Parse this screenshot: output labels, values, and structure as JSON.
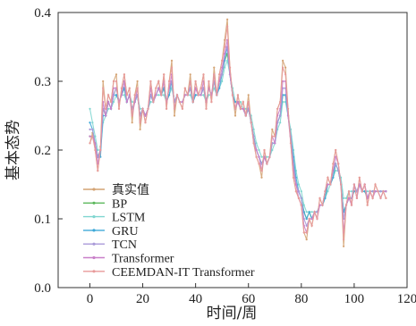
{
  "chart_data": {
    "type": "line",
    "xlabel": "时间/周",
    "ylabel": "基本态势",
    "xlim": [
      -12,
      120
    ],
    "ylim": [
      0.0,
      0.4
    ],
    "x_ticks": [
      0,
      20,
      40,
      60,
      80,
      100,
      120
    ],
    "y_ticks": [
      0.0,
      0.1,
      0.2,
      0.3,
      0.4
    ],
    "x_tick_labels": [
      "0",
      "20",
      "40",
      "60",
      "80",
      "100",
      "120"
    ],
    "y_tick_labels": [
      "0.0",
      "0.1",
      "0.2",
      "0.3",
      "0.4"
    ],
    "legend_position": "lower-left",
    "grid": false,
    "x": [
      0,
      1,
      2,
      3,
      4,
      5,
      6,
      7,
      8,
      9,
      10,
      11,
      12,
      13,
      14,
      15,
      16,
      17,
      18,
      19,
      20,
      21,
      22,
      23,
      24,
      25,
      26,
      27,
      28,
      29,
      30,
      31,
      32,
      33,
      34,
      35,
      36,
      37,
      38,
      39,
      40,
      41,
      42,
      43,
      44,
      45,
      46,
      47,
      48,
      49,
      50,
      51,
      52,
      53,
      54,
      55,
      56,
      57,
      58,
      59,
      60,
      61,
      62,
      63,
      64,
      65,
      66,
      67,
      68,
      69,
      70,
      71,
      72,
      73,
      74,
      75,
      76,
      77,
      78,
      79,
      80,
      81,
      82,
      83,
      84,
      85,
      86,
      87,
      88,
      89,
      90,
      91,
      92,
      93,
      94,
      95,
      96,
      97,
      98,
      99,
      100,
      101,
      102,
      103,
      104,
      105,
      106,
      107,
      108,
      109,
      110,
      111,
      112
    ],
    "series": [
      {
        "name": "真实值",
        "color": "#d4a373",
        "values": [
          0.21,
          0.225,
          0.2,
          0.17,
          0.205,
          0.3,
          0.26,
          0.28,
          0.27,
          0.3,
          0.31,
          0.26,
          0.29,
          0.31,
          0.28,
          0.29,
          0.24,
          0.28,
          0.3,
          0.23,
          0.26,
          0.24,
          0.26,
          0.3,
          0.27,
          0.29,
          0.3,
          0.28,
          0.31,
          0.26,
          0.3,
          0.33,
          0.25,
          0.28,
          0.27,
          0.26,
          0.29,
          0.28,
          0.31,
          0.27,
          0.3,
          0.28,
          0.29,
          0.31,
          0.26,
          0.3,
          0.27,
          0.32,
          0.28,
          0.31,
          0.33,
          0.36,
          0.39,
          0.32,
          0.28,
          0.25,
          0.28,
          0.26,
          0.27,
          0.25,
          0.28,
          0.24,
          0.21,
          0.19,
          0.18,
          0.16,
          0.2,
          0.18,
          0.19,
          0.23,
          0.22,
          0.26,
          0.27,
          0.33,
          0.32,
          0.26,
          0.21,
          0.16,
          0.14,
          0.13,
          0.12,
          0.08,
          0.07,
          0.1,
          0.09,
          0.11,
          0.1,
          0.13,
          0.12,
          0.14,
          0.16,
          0.15,
          0.18,
          0.2,
          0.18,
          0.15,
          0.06,
          0.12,
          0.14,
          0.12,
          0.15,
          0.13,
          0.16,
          0.14,
          0.15,
          0.12,
          0.14,
          0.13,
          0.15,
          0.14,
          0.13,
          0.14,
          0.13
        ]
      },
      {
        "name": "BP",
        "color": "#5cb85c",
        "values": [
          0.22,
          0.22,
          0.21,
          0.19,
          0.2,
          0.26,
          0.25,
          0.27,
          0.26,
          0.28,
          0.29,
          0.27,
          0.28,
          0.29,
          0.27,
          0.28,
          0.26,
          0.27,
          0.28,
          0.25,
          0.26,
          0.25,
          0.26,
          0.28,
          0.27,
          0.28,
          0.29,
          0.28,
          0.29,
          0.27,
          0.29,
          0.3,
          0.27,
          0.28,
          0.27,
          0.27,
          0.28,
          0.28,
          0.29,
          0.27,
          0.28,
          0.28,
          0.28,
          0.29,
          0.27,
          0.29,
          0.28,
          0.3,
          0.28,
          0.3,
          0.31,
          0.33,
          0.34,
          0.31,
          0.28,
          0.27,
          0.27,
          0.26,
          0.26,
          0.25,
          0.26,
          0.24,
          0.22,
          0.2,
          0.19,
          0.18,
          0.19,
          0.18,
          0.19,
          0.21,
          0.21,
          0.24,
          0.25,
          0.28,
          0.28,
          0.25,
          0.22,
          0.18,
          0.15,
          0.14,
          0.13,
          0.11,
          0.1,
          0.11,
          0.1,
          0.11,
          0.11,
          0.12,
          0.12,
          0.13,
          0.15,
          0.15,
          0.16,
          0.18,
          0.17,
          0.15,
          0.11,
          0.12,
          0.13,
          0.13,
          0.14,
          0.14,
          0.15,
          0.14,
          0.14,
          0.13,
          0.14,
          0.14,
          0.14,
          0.14,
          0.14,
          0.14,
          0.14
        ]
      },
      {
        "name": "LSTM",
        "color": "#7fd6d0",
        "values": [
          0.26,
          0.24,
          0.22,
          0.2,
          0.2,
          0.24,
          0.25,
          0.26,
          0.26,
          0.27,
          0.28,
          0.27,
          0.28,
          0.28,
          0.27,
          0.28,
          0.27,
          0.27,
          0.28,
          0.26,
          0.26,
          0.25,
          0.26,
          0.27,
          0.27,
          0.28,
          0.28,
          0.28,
          0.28,
          0.27,
          0.28,
          0.29,
          0.27,
          0.28,
          0.27,
          0.27,
          0.28,
          0.28,
          0.28,
          0.27,
          0.28,
          0.28,
          0.28,
          0.28,
          0.27,
          0.28,
          0.28,
          0.29,
          0.28,
          0.29,
          0.3,
          0.32,
          0.33,
          0.31,
          0.29,
          0.27,
          0.27,
          0.27,
          0.26,
          0.26,
          0.26,
          0.25,
          0.23,
          0.21,
          0.2,
          0.19,
          0.19,
          0.19,
          0.19,
          0.2,
          0.21,
          0.23,
          0.24,
          0.27,
          0.27,
          0.25,
          0.23,
          0.2,
          0.17,
          0.15,
          0.14,
          0.12,
          0.11,
          0.11,
          0.11,
          0.11,
          0.11,
          0.12,
          0.12,
          0.13,
          0.14,
          0.15,
          0.16,
          0.17,
          0.17,
          0.16,
          0.13,
          0.13,
          0.14,
          0.14,
          0.14,
          0.14,
          0.15,
          0.14,
          0.14,
          0.14,
          0.14,
          0.14,
          0.14,
          0.14,
          0.14,
          0.14,
          0.14
        ]
      },
      {
        "name": "GRU",
        "color": "#3fa9d8",
        "values": [
          0.24,
          0.23,
          0.21,
          0.19,
          0.19,
          0.25,
          0.25,
          0.27,
          0.26,
          0.28,
          0.28,
          0.27,
          0.28,
          0.29,
          0.27,
          0.28,
          0.26,
          0.27,
          0.28,
          0.25,
          0.26,
          0.25,
          0.26,
          0.28,
          0.27,
          0.28,
          0.29,
          0.28,
          0.29,
          0.27,
          0.28,
          0.3,
          0.27,
          0.28,
          0.27,
          0.27,
          0.28,
          0.28,
          0.29,
          0.27,
          0.28,
          0.28,
          0.28,
          0.29,
          0.27,
          0.29,
          0.28,
          0.3,
          0.28,
          0.29,
          0.31,
          0.33,
          0.35,
          0.31,
          0.28,
          0.27,
          0.27,
          0.26,
          0.26,
          0.25,
          0.26,
          0.24,
          0.22,
          0.2,
          0.19,
          0.18,
          0.19,
          0.18,
          0.19,
          0.21,
          0.21,
          0.24,
          0.25,
          0.28,
          0.28,
          0.25,
          0.22,
          0.19,
          0.16,
          0.14,
          0.13,
          0.11,
          0.1,
          0.11,
          0.1,
          0.11,
          0.11,
          0.12,
          0.12,
          0.13,
          0.15,
          0.15,
          0.16,
          0.18,
          0.17,
          0.15,
          0.11,
          0.12,
          0.13,
          0.13,
          0.14,
          0.14,
          0.15,
          0.14,
          0.14,
          0.13,
          0.14,
          0.14,
          0.14,
          0.14,
          0.14,
          0.14,
          0.14
        ]
      },
      {
        "name": "TCN",
        "color": "#a99ad8",
        "values": [
          0.23,
          0.23,
          0.21,
          0.19,
          0.2,
          0.26,
          0.25,
          0.27,
          0.26,
          0.28,
          0.29,
          0.27,
          0.28,
          0.3,
          0.27,
          0.28,
          0.26,
          0.27,
          0.28,
          0.25,
          0.26,
          0.25,
          0.26,
          0.28,
          0.27,
          0.28,
          0.29,
          0.28,
          0.3,
          0.27,
          0.29,
          0.3,
          0.27,
          0.28,
          0.27,
          0.27,
          0.28,
          0.28,
          0.29,
          0.27,
          0.29,
          0.28,
          0.28,
          0.29,
          0.27,
          0.29,
          0.28,
          0.3,
          0.28,
          0.3,
          0.31,
          0.34,
          0.35,
          0.31,
          0.28,
          0.26,
          0.27,
          0.26,
          0.26,
          0.25,
          0.26,
          0.24,
          0.22,
          0.2,
          0.19,
          0.18,
          0.19,
          0.18,
          0.19,
          0.21,
          0.21,
          0.24,
          0.25,
          0.29,
          0.29,
          0.25,
          0.22,
          0.18,
          0.15,
          0.14,
          0.13,
          0.1,
          0.09,
          0.1,
          0.1,
          0.11,
          0.11,
          0.12,
          0.12,
          0.14,
          0.15,
          0.15,
          0.17,
          0.18,
          0.17,
          0.15,
          0.1,
          0.12,
          0.13,
          0.13,
          0.15,
          0.14,
          0.15,
          0.14,
          0.15,
          0.13,
          0.14,
          0.14,
          0.14,
          0.14,
          0.14,
          0.14,
          0.14
        ]
      },
      {
        "name": "Transformer",
        "color": "#c97fc9",
        "values": [
          0.22,
          0.22,
          0.21,
          0.18,
          0.2,
          0.27,
          0.25,
          0.27,
          0.26,
          0.29,
          0.29,
          0.27,
          0.28,
          0.3,
          0.27,
          0.28,
          0.25,
          0.27,
          0.29,
          0.24,
          0.26,
          0.25,
          0.26,
          0.29,
          0.27,
          0.28,
          0.29,
          0.28,
          0.3,
          0.27,
          0.29,
          0.31,
          0.26,
          0.28,
          0.27,
          0.27,
          0.28,
          0.28,
          0.3,
          0.27,
          0.29,
          0.28,
          0.28,
          0.3,
          0.27,
          0.29,
          0.28,
          0.31,
          0.28,
          0.3,
          0.32,
          0.34,
          0.36,
          0.31,
          0.28,
          0.26,
          0.27,
          0.26,
          0.26,
          0.25,
          0.27,
          0.24,
          0.21,
          0.2,
          0.19,
          0.17,
          0.19,
          0.18,
          0.19,
          0.22,
          0.21,
          0.25,
          0.26,
          0.3,
          0.3,
          0.25,
          0.21,
          0.17,
          0.15,
          0.13,
          0.12,
          0.09,
          0.08,
          0.1,
          0.1,
          0.11,
          0.1,
          0.12,
          0.12,
          0.14,
          0.15,
          0.15,
          0.17,
          0.19,
          0.18,
          0.15,
          0.08,
          0.12,
          0.13,
          0.12,
          0.15,
          0.13,
          0.15,
          0.14,
          0.15,
          0.13,
          0.14,
          0.13,
          0.14,
          0.14,
          0.13,
          0.14,
          0.14
        ]
      },
      {
        "name": "CEEMDAN-IT Transformer",
        "color": "#e89a9a",
        "values": [
          0.21,
          0.22,
          0.2,
          0.17,
          0.2,
          0.29,
          0.26,
          0.28,
          0.27,
          0.3,
          0.3,
          0.26,
          0.29,
          0.31,
          0.28,
          0.29,
          0.25,
          0.28,
          0.29,
          0.24,
          0.26,
          0.24,
          0.26,
          0.3,
          0.27,
          0.29,
          0.3,
          0.28,
          0.31,
          0.26,
          0.3,
          0.32,
          0.26,
          0.28,
          0.27,
          0.26,
          0.29,
          0.28,
          0.3,
          0.27,
          0.3,
          0.28,
          0.29,
          0.31,
          0.26,
          0.3,
          0.27,
          0.31,
          0.28,
          0.31,
          0.33,
          0.35,
          0.38,
          0.32,
          0.28,
          0.26,
          0.28,
          0.26,
          0.27,
          0.25,
          0.27,
          0.24,
          0.21,
          0.19,
          0.18,
          0.17,
          0.2,
          0.18,
          0.19,
          0.22,
          0.22,
          0.26,
          0.27,
          0.32,
          0.31,
          0.26,
          0.21,
          0.16,
          0.14,
          0.13,
          0.12,
          0.08,
          0.08,
          0.1,
          0.09,
          0.11,
          0.1,
          0.13,
          0.12,
          0.14,
          0.16,
          0.15,
          0.18,
          0.2,
          0.18,
          0.15,
          0.07,
          0.12,
          0.14,
          0.12,
          0.15,
          0.13,
          0.16,
          0.14,
          0.15,
          0.12,
          0.14,
          0.13,
          0.15,
          0.14,
          0.13,
          0.14,
          0.13
        ]
      }
    ]
  }
}
